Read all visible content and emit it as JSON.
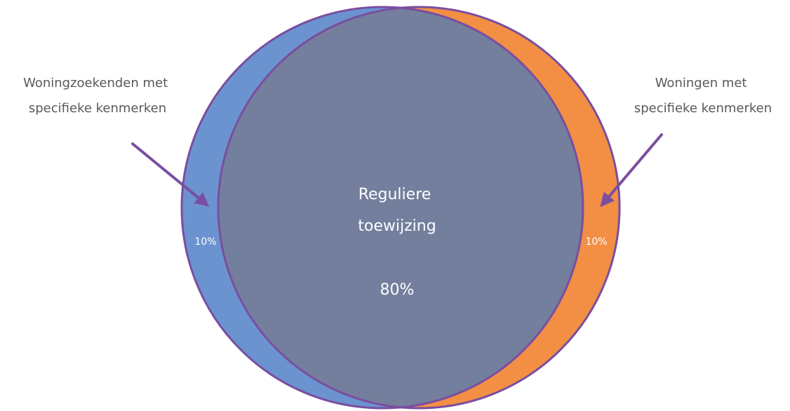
{
  "left_label": {
    "line1": "Woningzoekenden met",
    "line2": "specifieke kenmerken"
  },
  "right_label": {
    "line1": "Woningen met",
    "line2": "specifieke kenmerken"
  },
  "center": {
    "line1": "Reguliere",
    "line2": "toewijzing",
    "percent": "80%"
  },
  "left_percent": "10%",
  "right_percent": "10%",
  "colors": {
    "left_segment": "#6b93cf",
    "right_segment": "#f28f45",
    "overlap": "#737f9d",
    "outline": "#7a4ea0",
    "arrow": "#7a4ea0"
  }
}
